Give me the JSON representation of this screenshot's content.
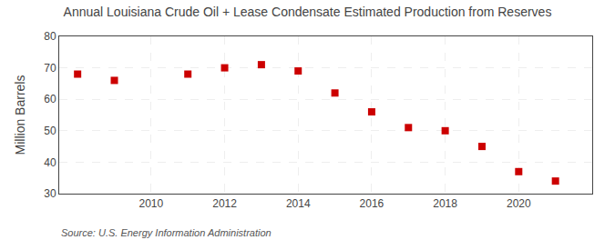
{
  "chart_data": {
    "type": "scatter",
    "title": "Annual Louisiana Crude Oil + Lease Condensate Estimated Production from Reserves",
    "ylabel": "Million Barrels",
    "annotations": [
      "Source: U.S. Energy Information Administration"
    ],
    "x": [
      2008,
      2009,
      2011,
      2012,
      2013,
      2014,
      2015,
      2016,
      2017,
      2018,
      2019,
      2020,
      2021
    ],
    "values": [
      68.0,
      66.0,
      68.0,
      70.0,
      71.0,
      69.0,
      62.0,
      56.0,
      51.0,
      50.0,
      45.0,
      37.0,
      34.0
    ],
    "color": "#cc0000",
    "marker": "square",
    "xlim": [
      2007.5,
      2022.0
    ],
    "ylim": [
      30,
      80
    ],
    "xticks": [
      2010,
      2012,
      2014,
      2016,
      2018,
      2020
    ],
    "yticks": [
      30,
      40,
      50,
      60,
      70,
      80
    ],
    "grid": true
  }
}
